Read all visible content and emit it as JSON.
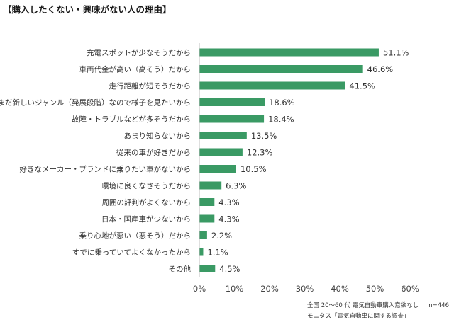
{
  "title": "【購入したくない・興味がない人の理由】",
  "colors": {
    "bar": "#3a9a64",
    "axis": "#bfbfbf",
    "text": "#333333"
  },
  "chart_data": {
    "type": "bar",
    "orientation": "horizontal",
    "title": "【購入したくない・興味がない人の理由】",
    "categories": [
      "充電スポットが少なそうだから",
      "車両代金が高い（高そう）だから",
      "走行距離が短そうだから",
      "まだ新しいジャンル（発展段階）なので様子を見たいから",
      "故障・トラブルなどが多そうだから",
      "あまり知らないから",
      "従来の車が好きだから",
      "好きなメーカー・ブランドに乗りたい車がないから",
      "環境に良くなさそうだから",
      "周囲の評判がよくないから",
      "日本・国産車が少ないから",
      "乗り心地が悪い（悪そう）だから",
      "すでに乗っていてよくなかったから",
      "その他"
    ],
    "values": [
      51.1,
      46.6,
      41.5,
      18.6,
      18.4,
      13.5,
      12.3,
      10.5,
      6.3,
      4.3,
      4.3,
      2.2,
      1.1,
      4.5
    ],
    "value_labels": [
      "51.1%",
      "46.6%",
      "41.5%",
      "18.6%",
      "18.4%",
      "13.5%",
      "12.3%",
      "10.5%",
      "6.3%",
      "4.3%",
      "4.3%",
      "2.2%",
      "1.1%",
      "4.5%"
    ],
    "xlim": [
      0,
      60
    ],
    "ticks": [
      0,
      10,
      20,
      30,
      40,
      50,
      60
    ],
    "tick_labels": [
      "0%",
      "10%",
      "20%",
      "30%",
      "40%",
      "50%",
      "60%"
    ],
    "xlabel": "",
    "ylabel": "",
    "grid": false,
    "legend": "none"
  },
  "source": {
    "line1": "全国 20～60 代  電気自動車購入意欲なし",
    "sample": "n=446",
    "line2": "モニタス「電気自動車に関する調査」"
  }
}
